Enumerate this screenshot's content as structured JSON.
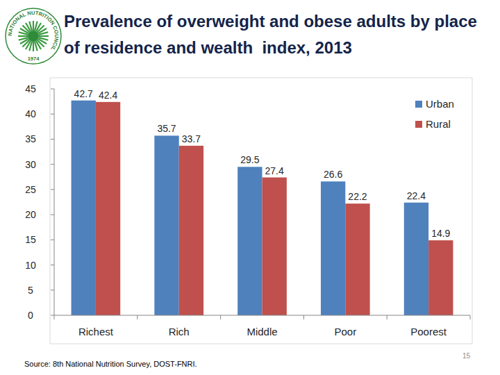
{
  "chart_data": {
    "type": "bar",
    "title": "Prevalence of overweight and obese adults by place of residence and wealth  index, 2013",
    "categories": [
      "Richest",
      "Rich",
      "Middle",
      "Poor",
      "Poorest"
    ],
    "series": [
      {
        "name": "Urban",
        "color": "#4f81bd",
        "values": [
          42.7,
          35.7,
          29.5,
          26.6,
          22.4
        ]
      },
      {
        "name": "Rural",
        "color": "#c0504d",
        "values": [
          42.4,
          33.7,
          27.4,
          22.2,
          14.9
        ]
      }
    ],
    "ylim": [
      0,
      45
    ],
    "yticks": [
      0,
      5,
      10,
      15,
      20,
      25,
      30,
      35,
      40,
      45
    ],
    "grid": false,
    "legend": "top-right",
    "data_labels": true
  },
  "source": "Source: 8th National Nutrition Survey, DOST-FNRI.",
  "page_number": 15,
  "logo": {
    "text": "NATIONAL NUTRITION COUNCIL",
    "year": "1974"
  }
}
